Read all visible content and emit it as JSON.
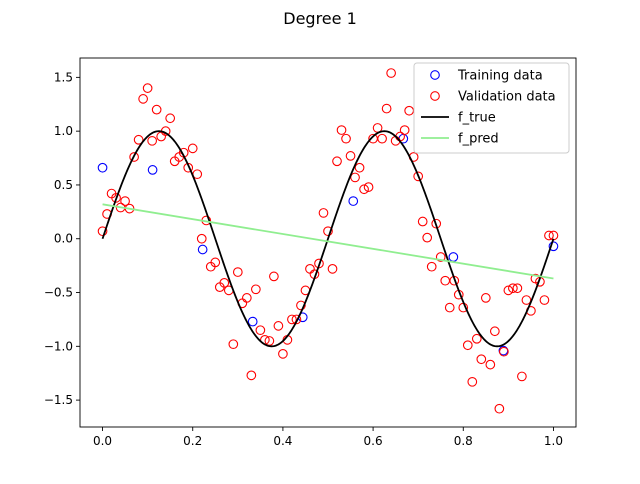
{
  "chart_data": {
    "type": "scatter",
    "title": "Degree 1",
    "xlabel": "",
    "ylabel": "",
    "xlim": [
      -0.05,
      1.05
    ],
    "ylim": [
      -1.75,
      1.68
    ],
    "x_ticks": [
      0.0,
      0.2,
      0.4,
      0.6,
      0.8,
      1.0
    ],
    "x_tick_labels": [
      "0.0",
      "0.2",
      "0.4",
      "0.6",
      "0.8",
      "1.0"
    ],
    "y_ticks": [
      -1.5,
      -1.0,
      -0.5,
      0.0,
      0.5,
      1.0,
      1.5
    ],
    "y_tick_labels": [
      "−1.5",
      "−1.0",
      "−0.5",
      "0.0",
      "0.5",
      "1.0",
      "1.5"
    ],
    "grid": false,
    "legend_position": "top-right",
    "legend": [
      {
        "label": "Training data",
        "kind": "circle",
        "color": "#0000ff"
      },
      {
        "label": "Validation data",
        "kind": "circle",
        "color": "#ff0000"
      },
      {
        "label": "f_true",
        "kind": "line",
        "color": "#000000"
      },
      {
        "label": "f_pred",
        "kind": "line",
        "color": "#90ee90"
      }
    ],
    "series": [
      {
        "name": "Training data",
        "kind": "scatter",
        "color": "#0000ff",
        "x": [
          0.0,
          0.111,
          0.222,
          0.333,
          0.444,
          0.556,
          0.667,
          0.778,
          0.889,
          1.0
        ],
        "y": [
          0.66,
          0.64,
          -0.1,
          -0.77,
          -0.73,
          0.35,
          0.93,
          -0.17,
          -1.04,
          -0.07
        ]
      },
      {
        "name": "Validation data",
        "kind": "scatter",
        "color": "#ff0000",
        "x": [
          0.0,
          0.01,
          0.02,
          0.03,
          0.04,
          0.05,
          0.06,
          0.07,
          0.08,
          0.09,
          0.1,
          0.11,
          0.12,
          0.13,
          0.14,
          0.15,
          0.16,
          0.17,
          0.18,
          0.19,
          0.2,
          0.21,
          0.22,
          0.23,
          0.24,
          0.25,
          0.26,
          0.27,
          0.28,
          0.29,
          0.3,
          0.31,
          0.32,
          0.33,
          0.34,
          0.35,
          0.36,
          0.37,
          0.38,
          0.39,
          0.4,
          0.41,
          0.42,
          0.43,
          0.44,
          0.45,
          0.46,
          0.47,
          0.48,
          0.49,
          0.5,
          0.51,
          0.52,
          0.53,
          0.54,
          0.55,
          0.56,
          0.57,
          0.58,
          0.59,
          0.6,
          0.61,
          0.62,
          0.63,
          0.64,
          0.65,
          0.66,
          0.67,
          0.68,
          0.69,
          0.7,
          0.71,
          0.72,
          0.73,
          0.74,
          0.75,
          0.76,
          0.77,
          0.78,
          0.79,
          0.8,
          0.81,
          0.82,
          0.83,
          0.84,
          0.85,
          0.86,
          0.87,
          0.88,
          0.89,
          0.9,
          0.91,
          0.92,
          0.93,
          0.94,
          0.95,
          0.96,
          0.97,
          0.98,
          0.99,
          1.0
        ],
        "y": [
          0.07,
          0.23,
          0.42,
          0.38,
          0.29,
          0.35,
          0.28,
          0.76,
          0.92,
          1.3,
          1.4,
          0.91,
          1.2,
          0.95,
          1.0,
          1.12,
          0.72,
          0.76,
          0.8,
          0.66,
          0.84,
          0.6,
          0.0,
          0.17,
          -0.26,
          -0.22,
          -0.45,
          -0.41,
          -0.48,
          -0.98,
          -0.31,
          -0.6,
          -0.55,
          -1.27,
          -0.47,
          -0.85,
          -0.94,
          -0.95,
          -0.35,
          -0.81,
          -1.07,
          -0.94,
          -0.75,
          -0.75,
          -0.62,
          -0.48,
          -0.28,
          -0.33,
          -0.23,
          0.24,
          0.07,
          -0.28,
          0.72,
          1.01,
          0.93,
          0.77,
          0.57,
          0.66,
          0.46,
          0.48,
          0.93,
          1.03,
          0.93,
          1.21,
          1.54,
          0.91,
          0.95,
          1.01,
          1.19,
          0.76,
          0.58,
          0.16,
          0.01,
          -0.26,
          0.14,
          -0.17,
          -0.39,
          -0.64,
          -0.39,
          -0.52,
          -0.64,
          -0.99,
          -1.33,
          -0.93,
          -1.12,
          -0.55,
          -1.17,
          -0.86,
          -1.58,
          -1.05,
          -0.48,
          -0.46,
          -0.46,
          -1.28,
          -0.57,
          -0.67,
          -0.37,
          -0.4,
          -0.57,
          0.03,
          0.03
        ]
      },
      {
        "name": "f_true",
        "kind": "line",
        "color": "#000000",
        "function": "sin(4*pi*x)",
        "x_range": [
          0,
          1
        ]
      },
      {
        "name": "f_pred",
        "kind": "line",
        "color": "#90ee90",
        "x": [
          0.0,
          1.0
        ],
        "y": [
          0.32,
          -0.37
        ]
      }
    ]
  }
}
